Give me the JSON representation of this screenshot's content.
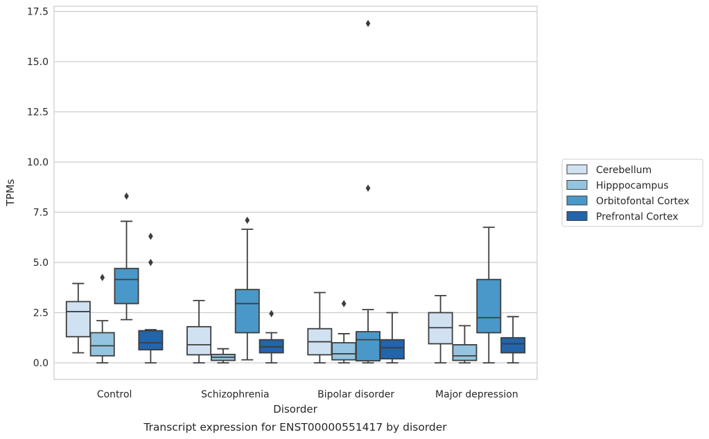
{
  "chart_data": {
    "type": "box",
    "title": "",
    "caption": "Transcript expression for ENST00000551417 by disorder",
    "xlabel": "Disorder",
    "ylabel": "TPMs",
    "ylim": [
      -0.8,
      17.75
    ],
    "yticks": [
      "0.0",
      "2.5",
      "5.0",
      "7.5",
      "10.0",
      "12.5",
      "15.0",
      "17.5"
    ],
    "grid": "horizontal",
    "legend_position": "right",
    "categories": [
      "Control",
      "Schizophrenia",
      "Bipolar disorder",
      "Major depression"
    ],
    "series": [
      {
        "name": "Cerebellum",
        "color": "#d0e1f2",
        "boxes": [
          {
            "whislo": 0.5,
            "q1": 1.3,
            "med": 2.55,
            "q3": 3.05,
            "whishi": 3.95,
            "fliers": []
          },
          {
            "whislo": 0.0,
            "q1": 0.4,
            "med": 0.9,
            "q3": 1.8,
            "whishi": 3.1,
            "fliers": []
          },
          {
            "whislo": 0.0,
            "q1": 0.4,
            "med": 1.05,
            "q3": 1.7,
            "whishi": 3.5,
            "fliers": []
          },
          {
            "whislo": 0.0,
            "q1": 0.95,
            "med": 1.75,
            "q3": 2.5,
            "whishi": 3.35,
            "fliers": []
          }
        ]
      },
      {
        "name": "Hipppocampus",
        "color": "#94c4df",
        "boxes": [
          {
            "whislo": 0.0,
            "q1": 0.35,
            "med": 0.85,
            "q3": 1.5,
            "whishi": 2.1,
            "fliers": [
              4.25
            ]
          },
          {
            "whislo": 0.0,
            "q1": 0.12,
            "med": 0.28,
            "q3": 0.42,
            "whishi": 0.7,
            "fliers": []
          },
          {
            "whislo": 0.0,
            "q1": 0.15,
            "med": 0.45,
            "q3": 1.0,
            "whishi": 1.45,
            "fliers": [
              2.95
            ]
          },
          {
            "whislo": 0.0,
            "q1": 0.12,
            "med": 0.35,
            "q3": 0.9,
            "whishi": 1.85,
            "fliers": []
          }
        ]
      },
      {
        "name": "Orbitofontal Cortex",
        "color": "#4a98c9",
        "boxes": [
          {
            "whislo": 2.15,
            "q1": 2.95,
            "med": 4.15,
            "q3": 4.7,
            "whishi": 7.05,
            "fliers": [
              8.3
            ]
          },
          {
            "whislo": 0.15,
            "q1": 1.5,
            "med": 2.95,
            "q3": 3.65,
            "whishi": 6.65,
            "fliers": [
              7.1
            ]
          },
          {
            "whislo": 0.0,
            "q1": 0.1,
            "med": 1.15,
            "q3": 1.55,
            "whishi": 2.65,
            "fliers": [
              8.7,
              16.9
            ]
          },
          {
            "whislo": 0.0,
            "q1": 1.5,
            "med": 2.25,
            "q3": 4.15,
            "whishi": 6.75,
            "fliers": []
          }
        ]
      },
      {
        "name": "Prefrontal Cortex",
        "color": "#2364aa",
        "boxes": [
          {
            "whislo": 0.0,
            "q1": 0.65,
            "med": 1.0,
            "q3": 1.6,
            "whishi": 1.65,
            "fliers": [
              5.0,
              6.3
            ]
          },
          {
            "whislo": 0.0,
            "q1": 0.5,
            "med": 0.8,
            "q3": 1.15,
            "whishi": 1.5,
            "fliers": [
              2.45
            ]
          },
          {
            "whislo": 0.0,
            "q1": 0.2,
            "med": 0.75,
            "q3": 1.15,
            "whishi": 2.5,
            "fliers": []
          },
          {
            "whislo": 0.0,
            "q1": 0.5,
            "med": 0.95,
            "q3": 1.25,
            "whishi": 2.3,
            "fliers": []
          }
        ]
      }
    ]
  }
}
